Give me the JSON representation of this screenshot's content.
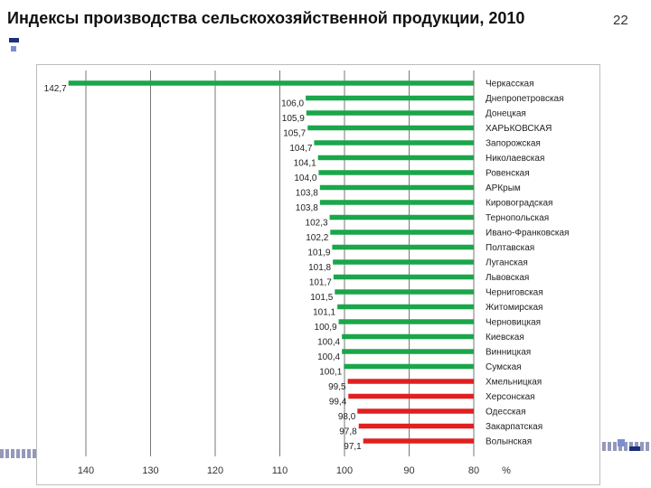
{
  "slide": {
    "title": "Индексы производства сельскохозяйственной продукции, 2010",
    "number": "22"
  },
  "colors": {
    "above_100": "#1aa64a",
    "below_100": "#e02020",
    "grid": "#777777",
    "text": "#222222"
  },
  "chart_data": {
    "type": "bar",
    "orientation": "horizontal",
    "axis_reversed": true,
    "xlim": [
      80,
      145
    ],
    "xticks": [
      140,
      130,
      120,
      110,
      100,
      90,
      80
    ],
    "x_unit_label": "%",
    "grid": true,
    "categories": [
      "Черкасская",
      "Днепропетровская",
      "Донецкая",
      "ХАРЬКОВСКАЯ",
      "Запорожская",
      "Николаевская",
      "Ровенская",
      "АРКрым",
      "Кировоградская",
      "Тернопольская",
      "Ивано-Франковская",
      "Полтавская",
      "Луганская",
      "Львовская",
      "Черниговская",
      "Житомирская",
      "Черновицкая",
      "Киевская",
      "Винницкая",
      "Сумская",
      "Хмельницкая",
      "Херсонская",
      "Одесская",
      "Закарпатская",
      "Волынская"
    ],
    "values": [
      142.7,
      106.0,
      105.9,
      105.7,
      104.7,
      104.1,
      104.0,
      103.8,
      103.8,
      102.3,
      102.2,
      101.9,
      101.8,
      101.7,
      101.5,
      101.1,
      100.9,
      100.4,
      100.4,
      100.1,
      99.5,
      99.4,
      98.0,
      97.8,
      97.1
    ],
    "value_labels": [
      "142,7",
      "106,0",
      "105,9",
      "105,7",
      "104,7",
      "104,1",
      "104,0",
      "103,8",
      "103,8",
      "102,3",
      "102,2",
      "101,9",
      "101,8",
      "101,7",
      "101,5",
      "101,1",
      "100,9",
      "100,4",
      "100,4",
      "100,1",
      "99,5",
      "99,4",
      "98,0",
      "97,8",
      "97,1"
    ]
  }
}
